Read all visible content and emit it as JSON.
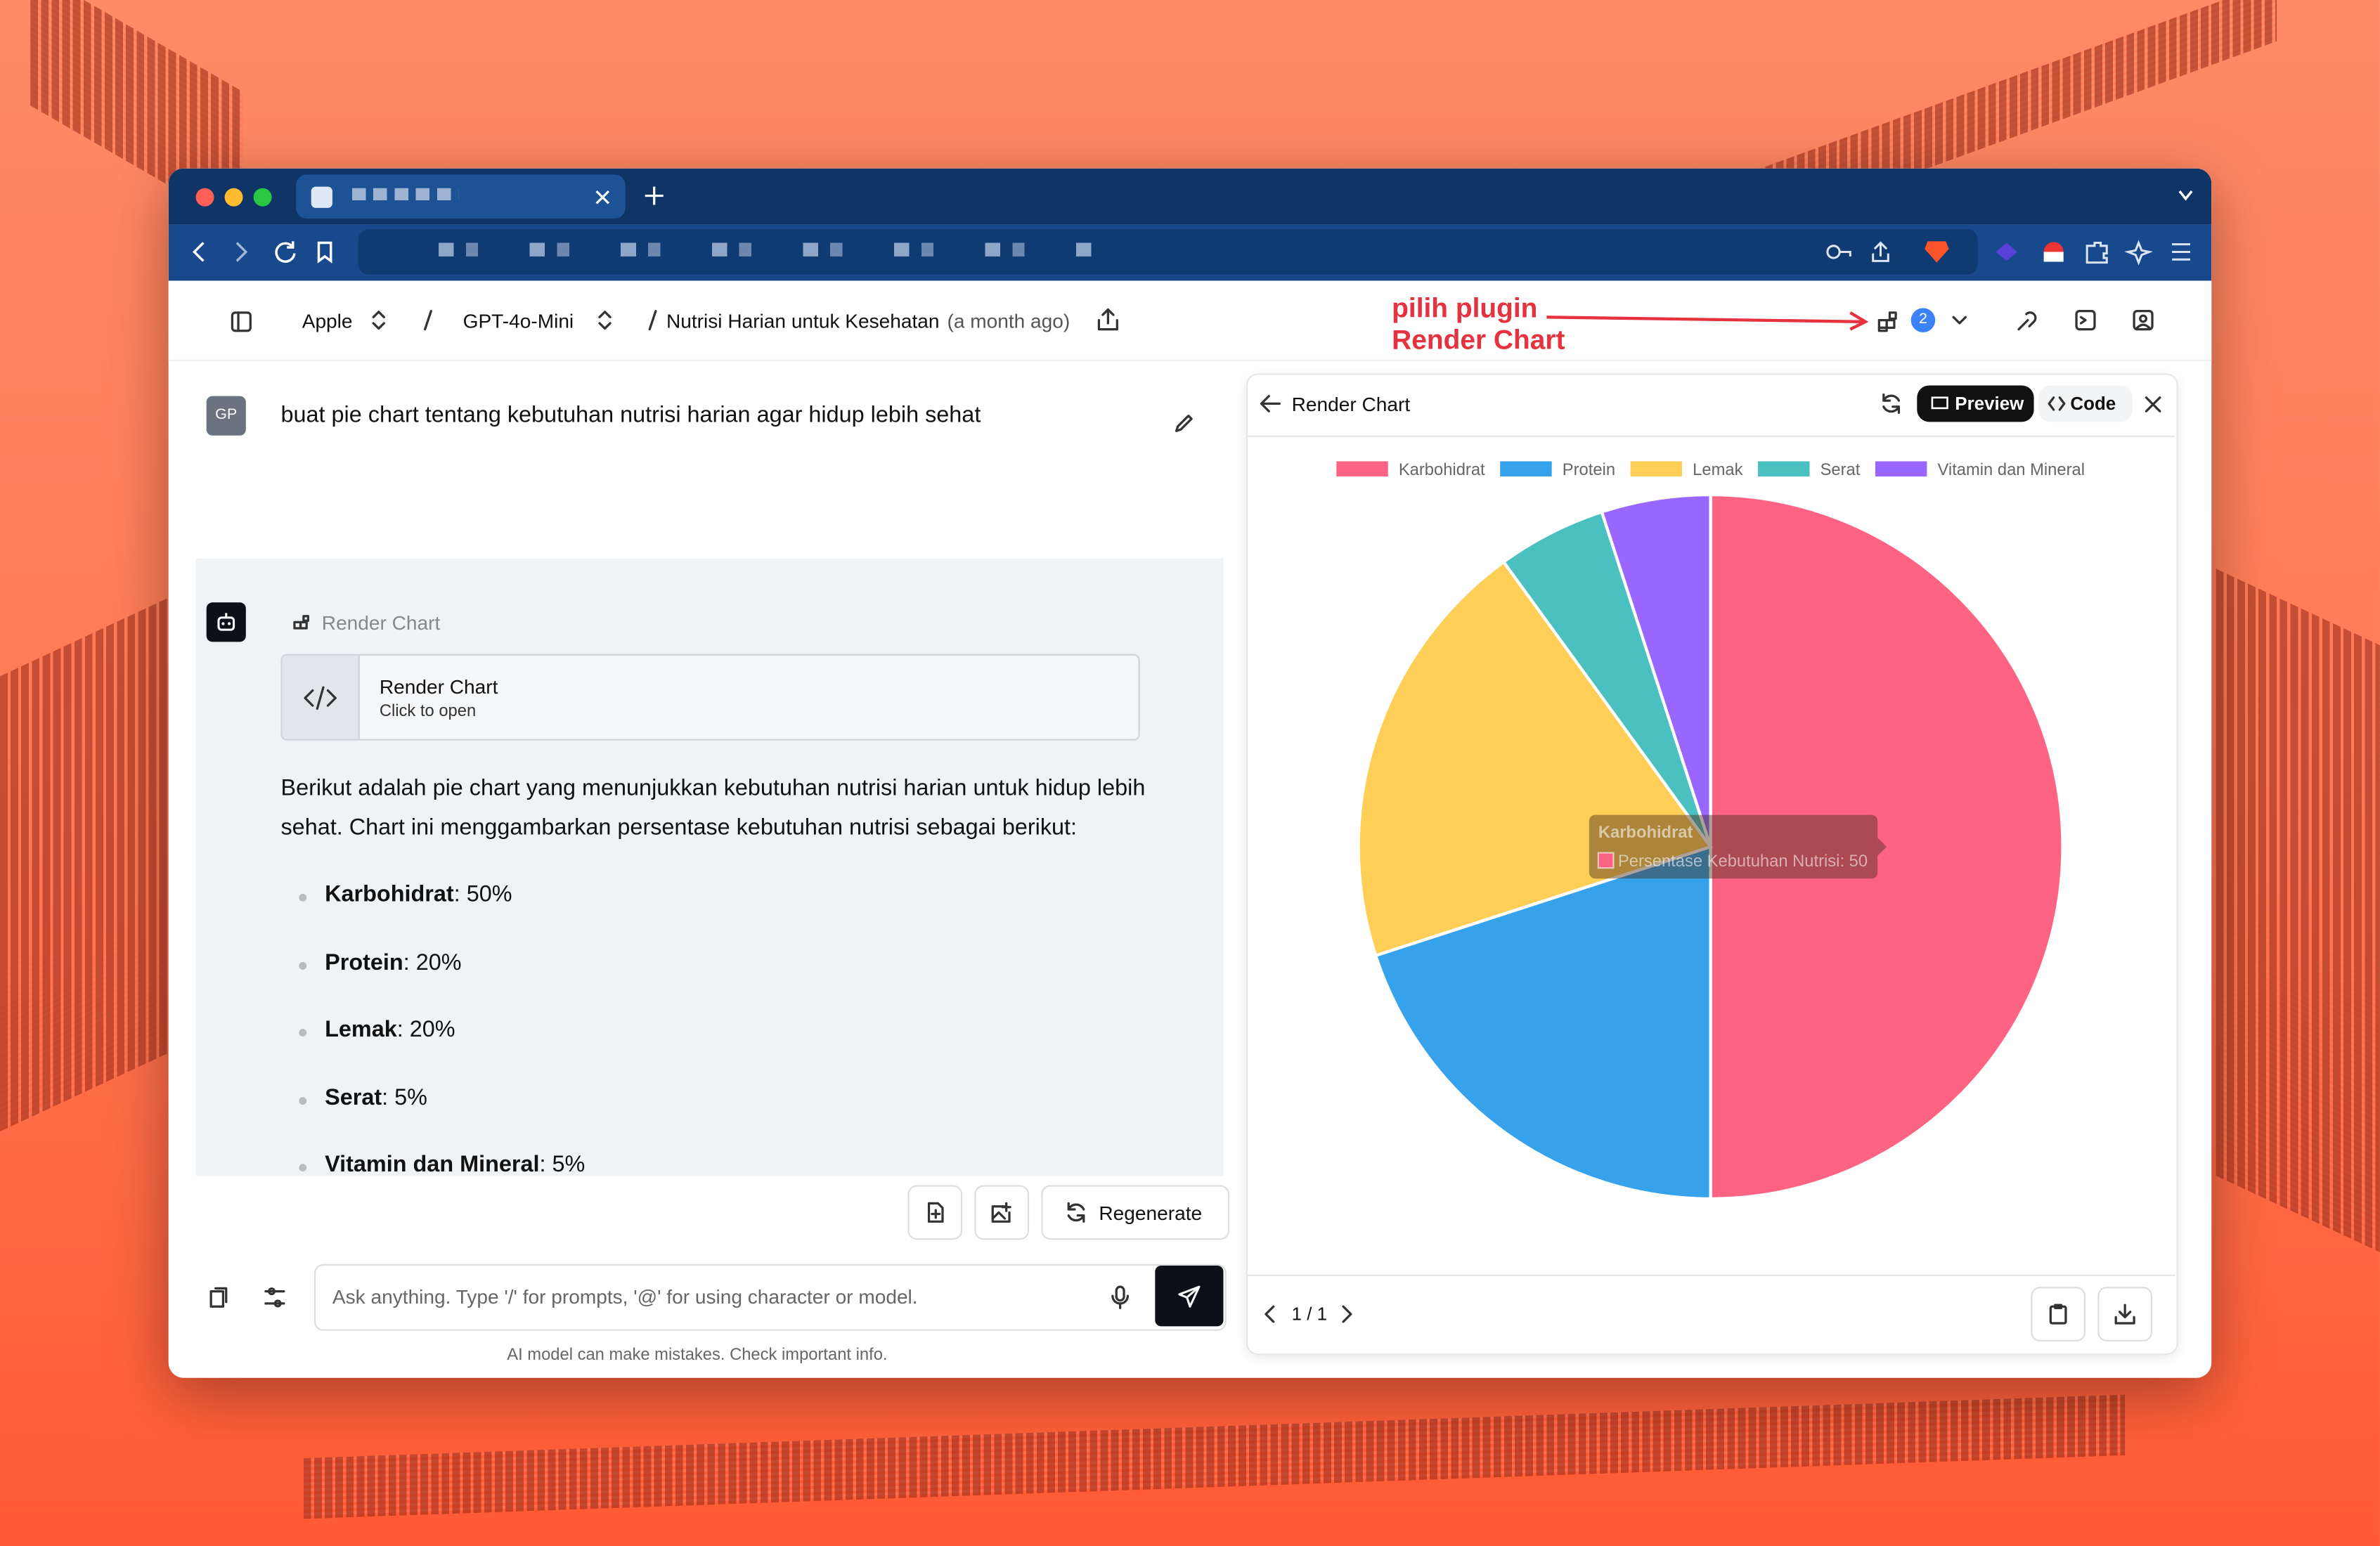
{
  "header": {
    "provider": "Apple",
    "model": "GPT-4o-Mini",
    "chat_title": "Nutrisi Harian untuk Kesehatan",
    "chat_time": "(a month ago)",
    "badge": "2"
  },
  "annotation": [
    "pilih plugin",
    "Render Chart"
  ],
  "user_message": {
    "avatar": "GP",
    "text": "buat pie chart tentang kebutuhan nutrisi harian agar hidup lebih sehat"
  },
  "assistant": {
    "plugin_label": "Render Chart",
    "card_title": "Render Chart",
    "card_subtitle": "Click to open",
    "intro": "Berikut adalah pie chart yang menunjukkan kebutuhan nutrisi harian untuk hidup lebih sehat. Chart ini menggambarkan persentase kebutuhan nutrisi sebagai berikut:",
    "items": [
      {
        "name": "Karbohidrat",
        "text": ": 50%"
      },
      {
        "name": "Protein",
        "text": ": 20%"
      },
      {
        "name": "Lemak",
        "text": ": 20%"
      },
      {
        "name": "Serat",
        "text": ": 5%"
      },
      {
        "name": "Vitamin dan Mineral",
        "text": ": 5%"
      }
    ]
  },
  "actions": {
    "regenerate": "Regenerate"
  },
  "input": {
    "placeholder": "Ask anything.  Type '/' for prompts, '@' for using character or model.",
    "disclaimer": "AI model can make mistakes. Check important info."
  },
  "panel": {
    "title": "Render Chart",
    "preview": "Preview",
    "code": "Code",
    "pager": "1 / 1"
  },
  "chart_data": {
    "type": "pie",
    "categories": [
      "Karbohidrat",
      "Protein",
      "Lemak",
      "Serat",
      "Vitamin dan Mineral"
    ],
    "values": [
      50,
      20,
      20,
      5,
      5
    ],
    "colors": [
      "#ff6384",
      "#36a2eb",
      "#ffce56",
      "#4bc0c0",
      "#9966ff"
    ],
    "legend": "top",
    "tooltip": {
      "title": "Karbohidrat",
      "body": "Persentase Kebutuhan Nutrisi: 50"
    }
  }
}
